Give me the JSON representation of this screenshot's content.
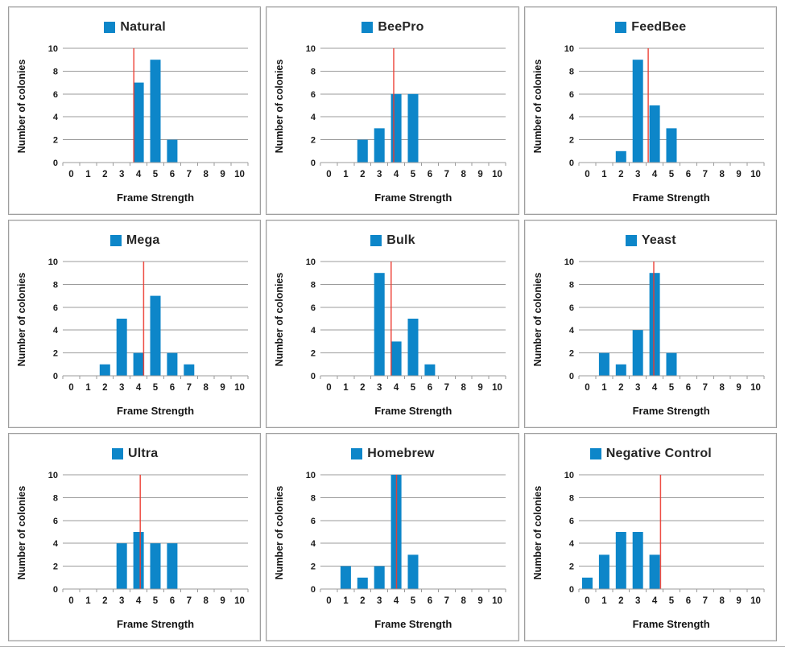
{
  "page": {
    "background": "#ffffff"
  },
  "colors": {
    "bar": "#0d86c9",
    "red_line": "#ed3b30",
    "grid": "#9b9b9b",
    "axis": "#9b9b9b",
    "text": "#1a1a1a",
    "panel_border": "#9e9e9e"
  },
  "chart_data": [
    {
      "type": "bar",
      "title": "Natural",
      "xlabel": "Frame Strength",
      "ylabel": "Number of colonies",
      "categories": [
        0,
        1,
        2,
        3,
        4,
        5,
        6,
        7,
        8,
        9,
        10
      ],
      "values": [
        0,
        0,
        0,
        0,
        7,
        9,
        2,
        0,
        0,
        0,
        0
      ],
      "red_line_x": 3.72,
      "ylim": [
        0,
        10
      ],
      "y_ticks": [
        0,
        2,
        4,
        6,
        8,
        10
      ],
      "grid": true,
      "legend_position": "top"
    },
    {
      "type": "bar",
      "title": "BeePro",
      "xlabel": "Frame Strength",
      "ylabel": "Number of colonies",
      "categories": [
        0,
        1,
        2,
        3,
        4,
        5,
        6,
        7,
        8,
        9,
        10
      ],
      "values": [
        0,
        0,
        2,
        3,
        6,
        6,
        0,
        0,
        0,
        0,
        0
      ],
      "red_line_x": 3.85,
      "ylim": [
        0,
        10
      ],
      "y_ticks": [
        0,
        2,
        4,
        6,
        8,
        10
      ],
      "grid": true,
      "legend_position": "top"
    },
    {
      "type": "bar",
      "title": "FeedBee",
      "xlabel": "Frame Strength",
      "ylabel": "Number of colonies",
      "categories": [
        0,
        1,
        2,
        3,
        4,
        5,
        6,
        7,
        8,
        9,
        10
      ],
      "values": [
        0,
        0,
        1,
        9,
        5,
        3,
        0,
        0,
        0,
        0,
        0
      ],
      "red_line_x": 3.62,
      "ylim": [
        0,
        10
      ],
      "y_ticks": [
        0,
        2,
        4,
        6,
        8,
        10
      ],
      "grid": true,
      "legend_position": "top"
    },
    {
      "type": "bar",
      "title": "Mega",
      "xlabel": "Frame Strength",
      "ylabel": "Number of colonies",
      "categories": [
        0,
        1,
        2,
        3,
        4,
        5,
        6,
        7,
        8,
        9,
        10
      ],
      "values": [
        0,
        0,
        1,
        5,
        2,
        7,
        2,
        1,
        0,
        0,
        0
      ],
      "red_line_x": 4.3,
      "ylim": [
        0,
        10
      ],
      "y_ticks": [
        0,
        2,
        4,
        6,
        8,
        10
      ],
      "grid": true,
      "legend_position": "top"
    },
    {
      "type": "bar",
      "title": "Bulk",
      "xlabel": "Frame Strength",
      "ylabel": "Number of colonies",
      "categories": [
        0,
        1,
        2,
        3,
        4,
        5,
        6,
        7,
        8,
        9,
        10
      ],
      "values": [
        0,
        0,
        0,
        9,
        3,
        5,
        1,
        0,
        0,
        0,
        0
      ],
      "red_line_x": 3.7,
      "ylim": [
        0,
        10
      ],
      "y_ticks": [
        0,
        2,
        4,
        6,
        8,
        10
      ],
      "grid": true,
      "legend_position": "top"
    },
    {
      "type": "bar",
      "title": "Yeast",
      "xlabel": "Frame Strength",
      "ylabel": "Number of colonies",
      "categories": [
        0,
        1,
        2,
        3,
        4,
        5,
        6,
        7,
        8,
        9,
        10
      ],
      "values": [
        0,
        2,
        1,
        4,
        9,
        2,
        0,
        0,
        0,
        0,
        0
      ],
      "red_line_x": 3.95,
      "ylim": [
        0,
        10
      ],
      "y_ticks": [
        0,
        2,
        4,
        6,
        8,
        10
      ],
      "grid": true,
      "legend_position": "top"
    },
    {
      "type": "bar",
      "title": "Ultra",
      "xlabel": "Frame Strength",
      "ylabel": "Number of colonies",
      "categories": [
        0,
        1,
        2,
        3,
        4,
        5,
        6,
        7,
        8,
        9,
        10
      ],
      "values": [
        0,
        0,
        0,
        4,
        5,
        4,
        4,
        0,
        0,
        0,
        0
      ],
      "red_line_x": 4.1,
      "ylim": [
        0,
        10
      ],
      "y_ticks": [
        0,
        2,
        4,
        6,
        8,
        10
      ],
      "grid": true,
      "legend_position": "top"
    },
    {
      "type": "bar",
      "title": "Homebrew",
      "xlabel": "Frame Strength",
      "ylabel": "Number of colonies",
      "categories": [
        0,
        1,
        2,
        3,
        4,
        5,
        6,
        7,
        8,
        9,
        10
      ],
      "values": [
        0,
        2,
        1,
        2,
        10,
        3,
        0,
        0,
        0,
        0,
        0
      ],
      "red_line_x": 4.02,
      "ylim": [
        0,
        10
      ],
      "y_ticks": [
        0,
        2,
        4,
        6,
        8,
        10
      ],
      "grid": true,
      "legend_position": "top"
    },
    {
      "type": "bar",
      "title": "Negative Control",
      "xlabel": "Frame Strength",
      "ylabel": "Number of colonies",
      "categories": [
        0,
        1,
        2,
        3,
        4,
        5,
        6,
        7,
        8,
        9,
        10
      ],
      "values": [
        1,
        3,
        5,
        5,
        3,
        0,
        0,
        0,
        0,
        0,
        0
      ],
      "red_line_x": 4.35,
      "ylim": [
        0,
        10
      ],
      "y_ticks": [
        0,
        2,
        4,
        6,
        8,
        10
      ],
      "grid": true,
      "legend_position": "top"
    }
  ]
}
